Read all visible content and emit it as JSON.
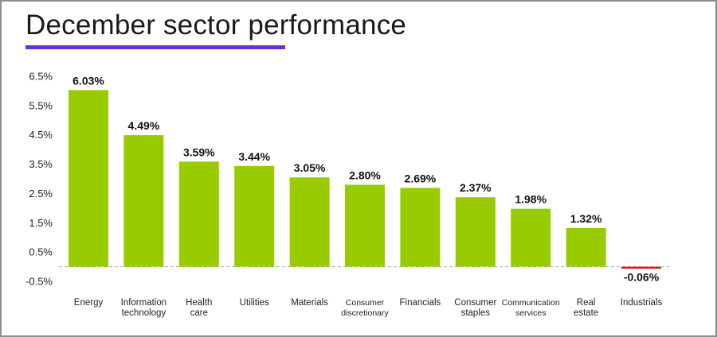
{
  "colors": {
    "positive": "#99cc00",
    "negative": "#cc2222",
    "title_rule": "#6a2fd6",
    "zero_line": "#a6a6a6"
  },
  "chart_data": {
    "type": "bar",
    "title": "December sector performance",
    "categories": [
      [
        "Energy"
      ],
      [
        "Information",
        "technology"
      ],
      [
        "Health",
        "care"
      ],
      [
        "Utilities"
      ],
      [
        "Materials"
      ],
      [
        "Consumer",
        "discretionary"
      ],
      [
        "Financials"
      ],
      [
        "Consumer",
        "staples"
      ],
      [
        "Communication",
        "services"
      ],
      [
        "Real",
        "estate"
      ],
      [
        "Industrials"
      ]
    ],
    "values": [
      6.03,
      4.49,
      3.59,
      3.44,
      3.05,
      2.8,
      2.69,
      2.37,
      1.98,
      1.32,
      -0.06
    ],
    "data_labels": [
      "6.03%",
      "4.49%",
      "3.59%",
      "3.44%",
      "3.05%",
      "2.80%",
      "2.69%",
      "2.37%",
      "1.98%",
      "1.32%",
      "-0.06%"
    ],
    "yticks": [
      6.5,
      5.5,
      4.5,
      3.5,
      2.5,
      1.5,
      0.5,
      -0.5
    ],
    "ytick_labels": [
      "6.5%",
      "5.5%",
      "4.5%",
      "3.5%",
      "2.5%",
      "1.5%",
      "0.5%",
      "-0.5%"
    ],
    "ylim": [
      -0.5,
      6.5
    ],
    "xlabel": "",
    "ylabel": "",
    "grid": false,
    "legend": "none"
  }
}
